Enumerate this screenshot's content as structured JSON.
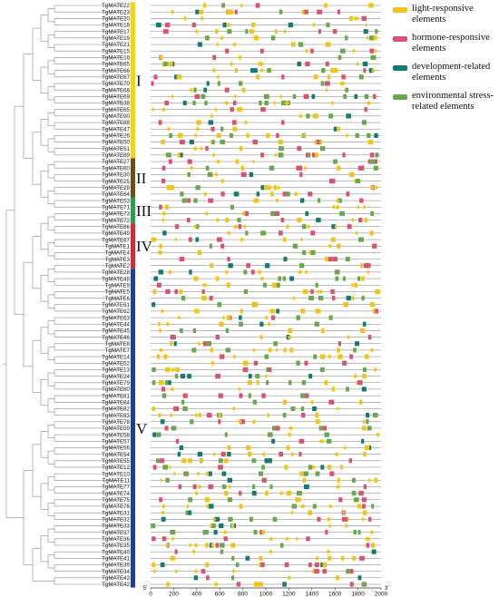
{
  "genes": [
    "TgMATE22",
    "TgMATE23",
    "TgMATE20",
    "TgMATE18",
    "TgMATE17",
    "TgMATE19",
    "TgMATE21",
    "TgMATE15",
    "TgMATE16",
    "TgMATE65",
    "TgMATE66",
    "TgMATE67",
    "TgMATE70",
    "TgMATE68",
    "TgMATE69",
    "TgMATE38",
    "TgMATE85",
    "TgMATE90",
    "TgMATE88",
    "TgMATE47",
    "TgMATE26",
    "TgMATE50",
    "TgMATE51",
    "TgMATE89",
    "TgMATE27",
    "TgMATE60",
    "TgMATE30",
    "TgMATE25",
    "TgMATE29",
    "TgMATE64",
    "TgMATE53",
    "TgMATE71",
    "TgMATE73",
    "TgMATE72",
    "TgMATE86",
    "TgMATE49",
    "TgMATE87",
    "TgMATE1",
    "TgMATE4",
    "TgMATE3",
    "TgMATE2",
    "TgMATE28",
    "TgMATE48",
    "TgMATE9",
    "TgMATE5",
    "TgMATE6",
    "TgMATE61",
    "TgMATE62",
    "TgMATE63",
    "TgMATE44",
    "TgMATE45",
    "TgMATE46",
    "TgMATE8",
    "TgMATE7",
    "TgMATE14",
    "TgMATE52",
    "TgMATE13",
    "TgMATE24",
    "TgMATE79",
    "TgMATE80",
    "TgMATE81",
    "TgMATE84",
    "TgMATE82",
    "TgMATE83",
    "TgMATE78",
    "TgMATE59",
    "TgMATE58",
    "TgMATE57",
    "TgMATE56",
    "TgMATE54",
    "TgMATE55",
    "TgMATE12",
    "TgMATE10",
    "TgMATE11",
    "TgMATE77",
    "TgMATE74",
    "TgMATE75",
    "TgMATE76",
    "TgMATE31",
    "TgMATE32",
    "TgMATE33",
    "TgMATE37",
    "TgMATE36",
    "TgMATE35",
    "TgMATE40",
    "TgMATE41",
    "TgMATE39",
    "TgMATE34",
    "TgMATE43",
    "TgMATE42"
  ],
  "groups": [
    {
      "label": "I",
      "color": "#f2d21b",
      "rows": [
        0,
        23
      ]
    },
    {
      "label": "II",
      "color": "#6b4e1e",
      "rows": [
        24,
        29
      ]
    },
    {
      "label": "III",
      "color": "#2e9a52",
      "rows": [
        30,
        33
      ]
    },
    {
      "label": "IV",
      "color": "#c8313a",
      "rows": [
        34,
        40
      ]
    },
    {
      "label": "V",
      "color": "#1f3f8f",
      "rows": [
        41,
        89
      ]
    }
  ],
  "axis": {
    "ticks": [
      "0",
      "200",
      "400",
      "600",
      "800",
      "1000",
      "1200",
      "1400",
      "1600",
      "1800",
      "2000"
    ],
    "start_label": "5'",
    "end_label": "3'",
    "max": 2000
  },
  "legend": [
    {
      "label": "light-responsive elements",
      "color": "#f0c419"
    },
    {
      "label": "hormone-responsive elements",
      "color": "#d9536e"
    },
    {
      "label": "development-related elements",
      "color": "#177a6e"
    },
    {
      "label": "environmental stress-related elements",
      "color": "#6aa84f"
    }
  ],
  "colors": {
    "light": "#f0c419",
    "hormone": "#d9536e",
    "development": "#177a6e",
    "stress": "#6aa84f",
    "line": "#7a7a7a",
    "tree": "#8a8a8a"
  }
}
